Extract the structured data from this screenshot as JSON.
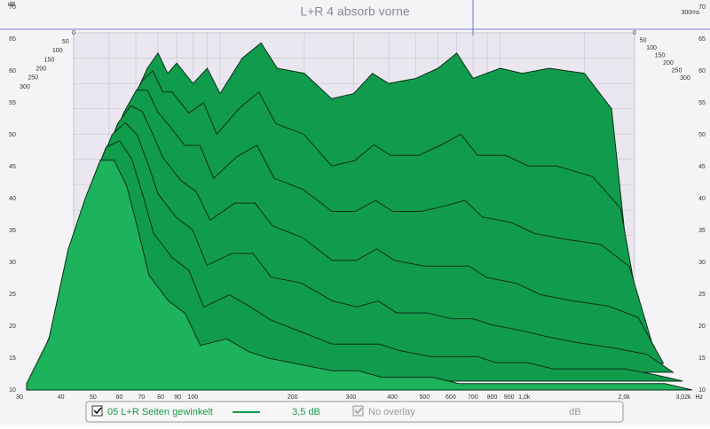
{
  "chart_data": {
    "type": "waterfall",
    "title": "L+R 4 absorb vorne",
    "y_label": "dB",
    "x_label": "Hz",
    "time_end_label": "300ms",
    "xlim": [
      30,
      3020
    ],
    "log_x": true,
    "xticks": [
      30,
      40,
      50,
      60,
      70,
      80,
      90,
      100,
      200,
      300,
      400,
      500,
      600,
      700,
      800,
      900,
      {
        "value": 1000,
        "label": "1,0k"
      },
      {
        "value": 2000,
        "label": "2,0k"
      },
      {
        "value": 3020,
        "label": "3,02k"
      }
    ],
    "ylim": [
      10,
      70
    ],
    "yticks": [
      10,
      15,
      20,
      25,
      30,
      35,
      40,
      45,
      50,
      55,
      60,
      65,
      70
    ],
    "tlim": [
      0,
      300
    ],
    "tticks": [
      0,
      50,
      100,
      150,
      200,
      250,
      300
    ],
    "grid": true,
    "fill_color": "#109c4c",
    "line_color": "#0b2e18",
    "x": [
      30,
      35,
      40,
      45,
      50,
      55,
      60,
      65,
      70,
      80,
      90,
      100,
      120,
      140,
      160,
      200,
      250,
      300,
      350,
      400,
      500,
      600,
      700,
      800,
      1000,
      1200,
      1500,
      2000,
      2500,
      3020
    ],
    "slices": [
      {
        "time": 0,
        "values": [
          15,
          30,
          45,
          52,
          58,
          63,
          66,
          62,
          64,
          60,
          63,
          58,
          65,
          68,
          63,
          62,
          57,
          58,
          62,
          60,
          61,
          63,
          66,
          61,
          63,
          62,
          63,
          62,
          55,
          12
        ]
      },
      {
        "time": 50,
        "values": [
          14,
          28,
          42,
          50,
          56,
          60,
          62,
          58,
          58,
          54,
          56,
          50,
          55,
          58,
          52,
          50,
          44,
          45,
          48,
          46,
          46,
          48,
          50,
          46,
          46,
          44,
          44,
          42,
          36,
          11
        ]
      },
      {
        "time": 100,
        "values": [
          13,
          26,
          40,
          48,
          54,
          58,
          58,
          54,
          52,
          48,
          48,
          42,
          46,
          48,
          42,
          40,
          36,
          36,
          38,
          36,
          36,
          37,
          38,
          35,
          34,
          32,
          31,
          30,
          26,
          11
        ]
      },
      {
        "time": 150,
        "values": [
          12,
          24,
          38,
          46,
          52,
          55,
          54,
          50,
          46,
          42,
          40,
          35,
          38,
          38,
          34,
          32,
          28,
          28,
          30,
          28,
          27,
          27,
          27,
          25,
          24,
          22,
          21,
          20,
          18,
          10
        ]
      },
      {
        "time": 200,
        "values": [
          12,
          22,
          36,
          44,
          50,
          52,
          50,
          45,
          40,
          36,
          34,
          28,
          30,
          30,
          26,
          25,
          22,
          21,
          22,
          20,
          20,
          19,
          19,
          18,
          17,
          16,
          15,
          14,
          13,
          10
        ]
      },
      {
        "time": 250,
        "values": [
          11,
          20,
          34,
          42,
          48,
          49,
          46,
          40,
          34,
          30,
          28,
          22,
          24,
          22,
          20,
          18,
          16,
          16,
          16,
          15,
          14,
          14,
          14,
          13,
          13,
          12,
          12,
          12,
          11,
          10
        ]
      },
      {
        "time": 300,
        "values": [
          11,
          18,
          32,
          40,
          46,
          46,
          42,
          35,
          28,
          24,
          22,
          17,
          18,
          16,
          15,
          14,
          13,
          13,
          12,
          12,
          12,
          11,
          11,
          11,
          11,
          11,
          11,
          11,
          11,
          10
        ]
      }
    ],
    "legend": {
      "series_name": "05 L+R Seiten gewinkelt",
      "offset_label": "3,5 dB",
      "overlay": "No overlay",
      "overlay_unit": "dB"
    }
  }
}
